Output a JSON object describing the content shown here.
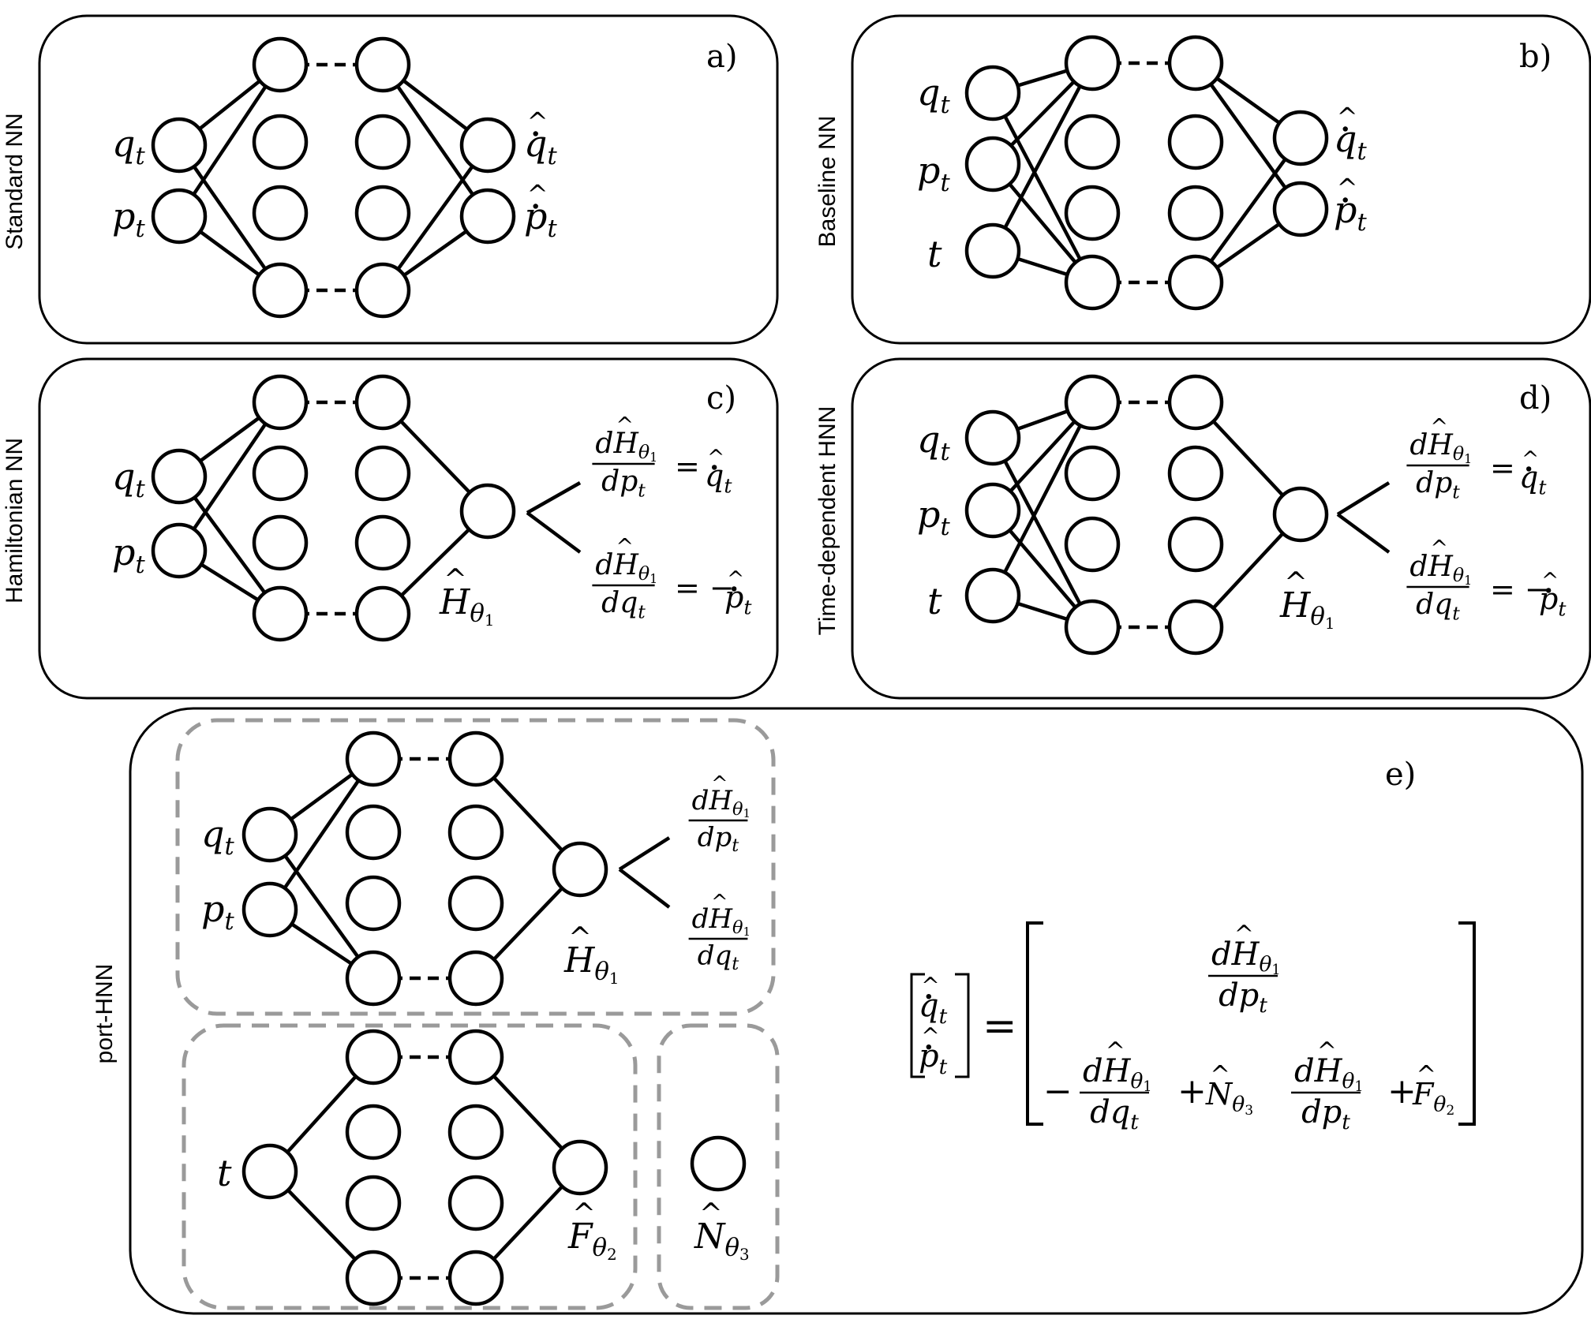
{
  "panels": {
    "a": {
      "letter": "a)",
      "side_label": "Standard NN"
    },
    "b": {
      "letter": "b)",
      "side_label": "Baseline NN"
    },
    "c": {
      "letter": "c)",
      "side_label": "Hamiltonian NN"
    },
    "d": {
      "letter": "d)",
      "side_label": "Time-dependent HNN"
    },
    "e": {
      "letter": "e)",
      "side_label": "port-HNN"
    }
  },
  "symbols": {
    "q": "q",
    "p": "p",
    "t": "t",
    "H": "H",
    "F": "F",
    "N": "N",
    "theta": "θ",
    "one": "1",
    "two": "2",
    "three": "3",
    "d": "d",
    "equals": "=",
    "minus": "−",
    "plus": "+",
    "minus_eq": "= −"
  },
  "colors": {
    "stroke": "#000000",
    "dashed_box": "#9a9a9a",
    "background": "#ffffff"
  }
}
